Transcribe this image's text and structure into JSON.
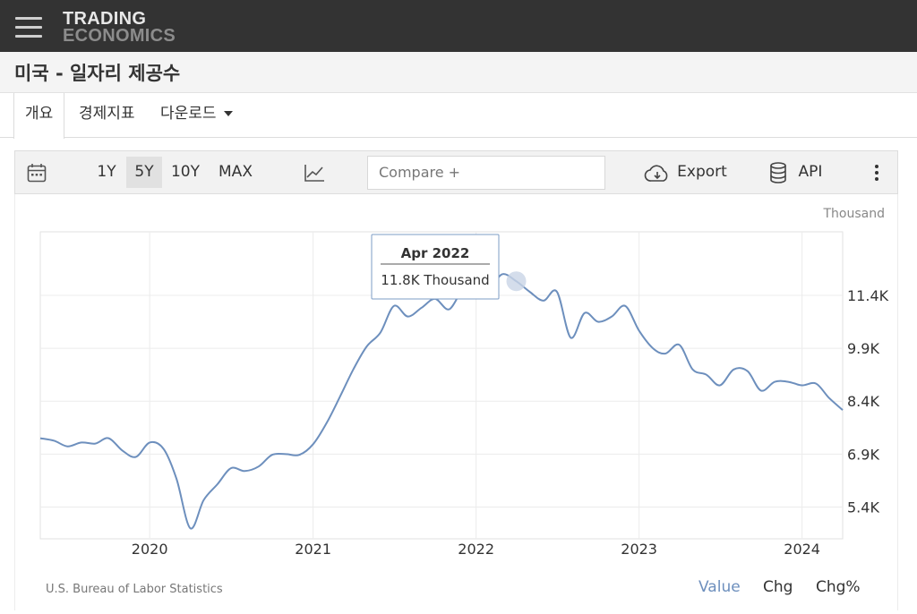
{
  "header": {
    "logo_line1": "TRADING",
    "logo_line2": "ECONOMICS"
  },
  "page": {
    "title": "미국 - 일자리 제공수"
  },
  "tabs": [
    {
      "label": "개요",
      "active": true
    },
    {
      "label": "경제지표",
      "active": false
    },
    {
      "label": "다운로드",
      "active": false
    }
  ],
  "toolbar": {
    "ranges": [
      "1Y",
      "5Y",
      "10Y",
      "MAX"
    ],
    "selected_range": "5Y",
    "compare_placeholder": "Compare +",
    "export_label": "Export",
    "api_label": "API"
  },
  "chart_data": {
    "type": "line",
    "unit": "Thousand",
    "y_ticks": [
      "5.4K",
      "6.9K",
      "8.4K",
      "9.9K",
      "11.4K"
    ],
    "x_ticks": [
      "2020",
      "2021",
      "2022",
      "2023",
      "2024"
    ],
    "ylim": [
      4500,
      13200
    ],
    "series": [
      {
        "color": "#6d8fbd",
        "points": [
          [
            "2019-05-01",
            7350
          ],
          [
            "2019-06-01",
            7280
          ],
          [
            "2019-07-01",
            7120
          ],
          [
            "2019-08-01",
            7230
          ],
          [
            "2019-09-01",
            7200
          ],
          [
            "2019-10-01",
            7350
          ],
          [
            "2019-11-01",
            7000
          ],
          [
            "2019-12-01",
            6820
          ],
          [
            "2020-01-01",
            7230
          ],
          [
            "2020-02-01",
            7050
          ],
          [
            "2020-03-01",
            6200
          ],
          [
            "2020-04-01",
            4800
          ],
          [
            "2020-05-01",
            5600
          ],
          [
            "2020-06-01",
            6050
          ],
          [
            "2020-07-01",
            6500
          ],
          [
            "2020-08-01",
            6420
          ],
          [
            "2020-09-01",
            6550
          ],
          [
            "2020-10-01",
            6880
          ],
          [
            "2020-11-01",
            6900
          ],
          [
            "2020-12-01",
            6880
          ],
          [
            "2021-01-01",
            7180
          ],
          [
            "2021-02-01",
            7800
          ],
          [
            "2021-03-01",
            8500
          ],
          [
            "2021-04-01",
            9300
          ],
          [
            "2021-05-01",
            9950
          ],
          [
            "2021-06-01",
            10350
          ],
          [
            "2021-07-01",
            11100
          ],
          [
            "2021-08-01",
            10800
          ],
          [
            "2021-09-01",
            11050
          ],
          [
            "2021-10-01",
            11300
          ],
          [
            "2021-11-01",
            11000
          ],
          [
            "2021-12-01",
            11500
          ],
          [
            "2022-01-01",
            11400
          ],
          [
            "2022-02-01",
            11600
          ],
          [
            "2022-03-01",
            12000
          ],
          [
            "2022-04-01",
            11800
          ],
          [
            "2022-05-01",
            11500
          ],
          [
            "2022-06-01",
            11250
          ],
          [
            "2022-07-01",
            11500
          ],
          [
            "2022-08-01",
            10200
          ],
          [
            "2022-09-01",
            10900
          ],
          [
            "2022-10-01",
            10650
          ],
          [
            "2022-11-01",
            10800
          ],
          [
            "2022-12-01",
            11100
          ],
          [
            "2023-01-01",
            10400
          ],
          [
            "2023-02-01",
            9900
          ],
          [
            "2023-03-01",
            9750
          ],
          [
            "2023-04-01",
            10000
          ],
          [
            "2023-05-01",
            9300
          ],
          [
            "2023-06-01",
            9150
          ],
          [
            "2023-07-01",
            8850
          ],
          [
            "2023-08-01",
            9300
          ],
          [
            "2023-09-01",
            9250
          ],
          [
            "2023-10-01",
            8700
          ],
          [
            "2023-11-01",
            8950
          ],
          [
            "2023-12-01",
            8950
          ],
          [
            "2024-01-01",
            8850
          ],
          [
            "2024-02-01",
            8900
          ],
          [
            "2024-03-01",
            8500
          ],
          [
            "2024-04-01",
            8150
          ]
        ]
      }
    ],
    "tooltip": {
      "date": "Apr 2022",
      "value": "11.8K Thousand",
      "highlight_point": [
        "2022-04-01",
        11800
      ]
    },
    "source": "U.S. Bureau of Labor Statistics"
  },
  "chart_modes": {
    "value_label": "Value",
    "chg_label": "Chg",
    "chgpct_label": "Chg%",
    "active": "Value",
    "active_color": "#6d8fbd"
  }
}
